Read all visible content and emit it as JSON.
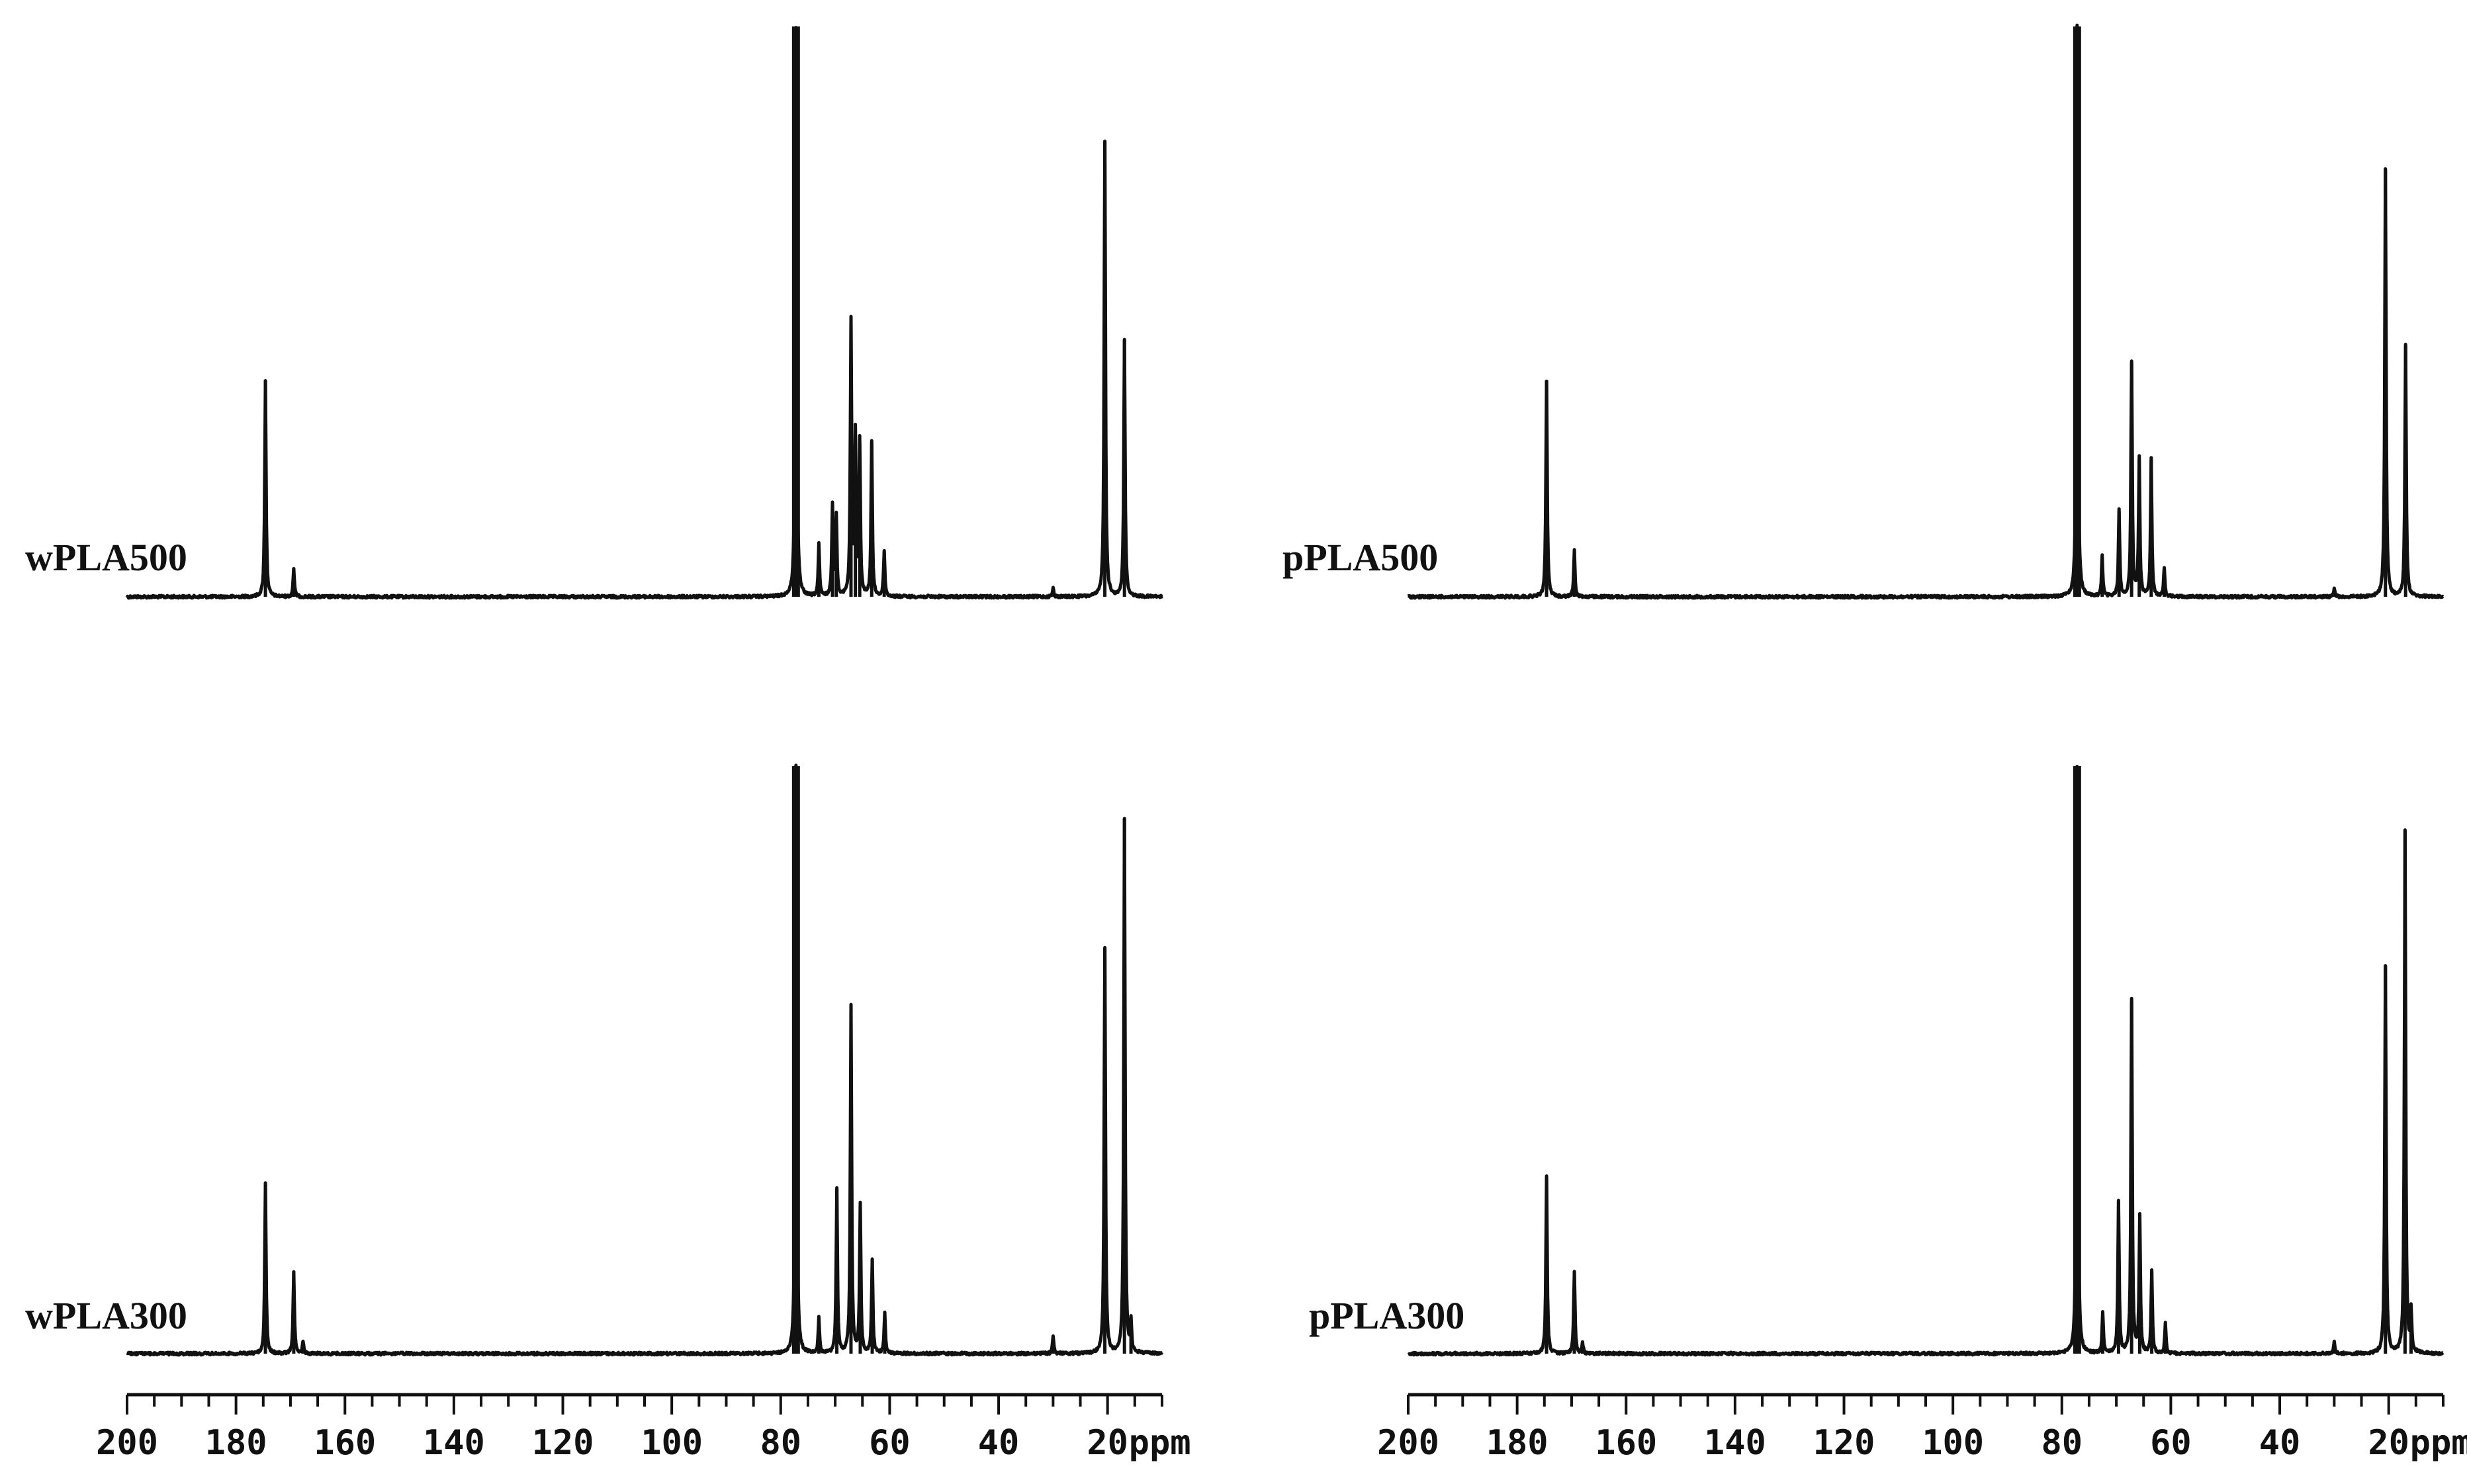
{
  "chart_data": [
    {
      "type": "line",
      "sample_label": "wPLA500",
      "xlabel": "ppm",
      "xlim": [
        200,
        10
      ],
      "x_direction": "reversed",
      "xticks": [
        200,
        180,
        160,
        140,
        120,
        100,
        80,
        60,
        40,
        20
      ],
      "y_units": "relative intensity",
      "peaks": [
        {
          "ppm": 175.9,
          "intensity": 0.0
        },
        {
          "ppm": 174.6,
          "intensity": 0.38
        },
        {
          "ppm": 169.4,
          "intensity": 0.05
        },
        {
          "ppm": 77.2,
          "intensity": 1.0
        },
        {
          "ppm": 73.0,
          "intensity": 0.09
        },
        {
          "ppm": 70.5,
          "intensity": 0.16
        },
        {
          "ppm": 69.8,
          "intensity": 0.14
        },
        {
          "ppm": 67.1,
          "intensity": 0.48
        },
        {
          "ppm": 66.3,
          "intensity": 0.28
        },
        {
          "ppm": 65.5,
          "intensity": 0.27
        },
        {
          "ppm": 63.3,
          "intensity": 0.27
        },
        {
          "ppm": 61.0,
          "intensity": 0.08
        },
        {
          "ppm": 30.0,
          "intensity": 0.015
        },
        {
          "ppm": 20.5,
          "intensity": 0.8
        },
        {
          "ppm": 16.9,
          "intensity": 0.45
        }
      ]
    },
    {
      "type": "line",
      "sample_label": "pPLA500",
      "xlabel": "ppm",
      "xlim": [
        200,
        10
      ],
      "x_direction": "reversed",
      "xticks": [
        200,
        180,
        160,
        140,
        120,
        100,
        80,
        60,
        40,
        20
      ],
      "y_units": "relative intensity",
      "peaks": [
        {
          "ppm": 176.5,
          "intensity": 0.0
        },
        {
          "ppm": 174.6,
          "intensity": 0.38
        },
        {
          "ppm": 169.5,
          "intensity": 0.08
        },
        {
          "ppm": 77.2,
          "intensity": 1.0
        },
        {
          "ppm": 72.6,
          "intensity": 0.07
        },
        {
          "ppm": 69.5,
          "intensity": 0.15
        },
        {
          "ppm": 67.2,
          "intensity": 0.41
        },
        {
          "ppm": 65.8,
          "intensity": 0.24
        },
        {
          "ppm": 63.6,
          "intensity": 0.24
        },
        {
          "ppm": 61.2,
          "intensity": 0.05
        },
        {
          "ppm": 30.0,
          "intensity": 0.015
        },
        {
          "ppm": 20.6,
          "intensity": 0.75
        },
        {
          "ppm": 16.9,
          "intensity": 0.44
        }
      ]
    },
    {
      "type": "line",
      "sample_label": "wPLA300",
      "xlabel": "ppm",
      "xlim": [
        200,
        10
      ],
      "x_direction": "reversed",
      "xticks": [
        200,
        180,
        160,
        140,
        120,
        100,
        80,
        60,
        40,
        20
      ],
      "y_units": "relative intensity",
      "peaks": [
        {
          "ppm": 174.6,
          "intensity": 0.29
        },
        {
          "ppm": 169.4,
          "intensity": 0.14
        },
        {
          "ppm": 167.7,
          "intensity": 0.02
        },
        {
          "ppm": 77.2,
          "intensity": 1.0
        },
        {
          "ppm": 73.0,
          "intensity": 0.06
        },
        {
          "ppm": 69.7,
          "intensity": 0.28
        },
        {
          "ppm": 67.1,
          "intensity": 0.59
        },
        {
          "ppm": 65.4,
          "intensity": 0.25
        },
        {
          "ppm": 63.2,
          "intensity": 0.16
        },
        {
          "ppm": 60.9,
          "intensity": 0.07
        },
        {
          "ppm": 30.0,
          "intensity": 0.03
        },
        {
          "ppm": 20.5,
          "intensity": 0.69
        },
        {
          "ppm": 16.9,
          "intensity": 0.91
        },
        {
          "ppm": 15.7,
          "intensity": 0.05
        }
      ]
    },
    {
      "type": "line",
      "sample_label": "pPLA300",
      "xlabel": "ppm",
      "xlim": [
        200,
        10
      ],
      "x_direction": "reversed",
      "xticks": [
        200,
        180,
        160,
        140,
        120,
        100,
        80,
        60,
        40,
        20
      ],
      "y_units": "relative intensity",
      "peaks": [
        {
          "ppm": 174.6,
          "intensity": 0.3
        },
        {
          "ppm": 169.5,
          "intensity": 0.14
        },
        {
          "ppm": 168.0,
          "intensity": 0.02
        },
        {
          "ppm": 77.2,
          "intensity": 1.0
        },
        {
          "ppm": 72.5,
          "intensity": 0.07
        },
        {
          "ppm": 69.6,
          "intensity": 0.26
        },
        {
          "ppm": 67.2,
          "intensity": 0.6
        },
        {
          "ppm": 65.7,
          "intensity": 0.23
        },
        {
          "ppm": 63.5,
          "intensity": 0.14
        },
        {
          "ppm": 61.0,
          "intensity": 0.05
        },
        {
          "ppm": 30.0,
          "intensity": 0.02
        },
        {
          "ppm": 20.6,
          "intensity": 0.66
        },
        {
          "ppm": 17.0,
          "intensity": 0.89
        },
        {
          "ppm": 15.9,
          "intensity": 0.07
        }
      ]
    }
  ]
}
